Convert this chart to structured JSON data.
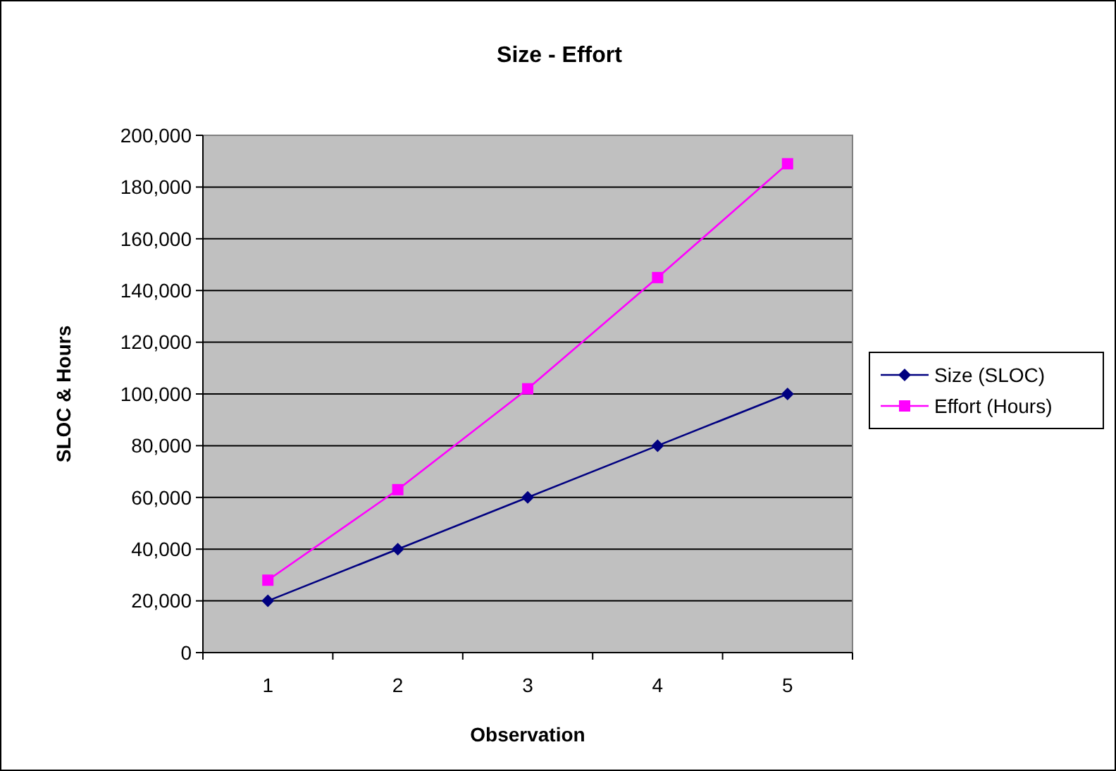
{
  "chart_data": {
    "type": "line",
    "title": "Size - Effort",
    "xlabel": "Observation",
    "ylabel": "SLOC & Hours",
    "categories": [
      "1",
      "2",
      "3",
      "4",
      "5"
    ],
    "series": [
      {
        "name": "Size (SLOC)",
        "color": "#000080",
        "marker": "diamond",
        "values": [
          20000,
          40000,
          60000,
          80000,
          100000
        ]
      },
      {
        "name": "Effort (Hours)",
        "color": "#ff00ff",
        "marker": "square",
        "values": [
          28000,
          63000,
          102000,
          145000,
          189000
        ]
      }
    ],
    "ylim": [
      0,
      200000
    ],
    "yticks": [
      {
        "value": 0,
        "label": "0"
      },
      {
        "value": 20000,
        "label": "20,000"
      },
      {
        "value": 40000,
        "label": "40,000"
      },
      {
        "value": 60000,
        "label": "60,000"
      },
      {
        "value": 80000,
        "label": "80,000"
      },
      {
        "value": 100000,
        "label": "100,000"
      },
      {
        "value": 120000,
        "label": "120,000"
      },
      {
        "value": 140000,
        "label": "140,000"
      },
      {
        "value": 160000,
        "label": "160,000"
      },
      {
        "value": 180000,
        "label": "180,000"
      },
      {
        "value": 200000,
        "label": "200,000"
      }
    ],
    "grid": "y",
    "legend": "right"
  }
}
